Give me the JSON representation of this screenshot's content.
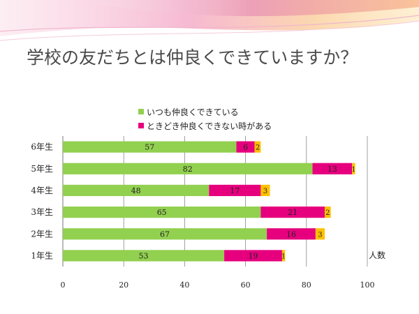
{
  "slide": {
    "title": "学校の友だちとは仲良くできていますか？"
  },
  "chart_data": {
    "type": "bar",
    "orientation": "horizontal",
    "stacked": true,
    "categories": [
      "6年生",
      "5年生",
      "4年生",
      "3年生",
      "2年生",
      "1年生"
    ],
    "series": [
      {
        "name": "いつも仲良くできている",
        "color": "#92d050",
        "values": [
          57,
          82,
          48,
          65,
          67,
          53
        ]
      },
      {
        "name": "ときどき仲良くできない時がある",
        "color": "#e6007e",
        "values": [
          6,
          13,
          17,
          21,
          16,
          19
        ]
      },
      {
        "name": "",
        "color": "#ffc000",
        "values": [
          2,
          1,
          3,
          2,
          3,
          1
        ]
      }
    ],
    "legend_series_count": 2,
    "x_ticks": [
      0,
      20,
      40,
      60,
      80,
      100
    ],
    "xlim": [
      0,
      100
    ],
    "grid": true,
    "legend_position": "top",
    "unit_label": "人数"
  }
}
